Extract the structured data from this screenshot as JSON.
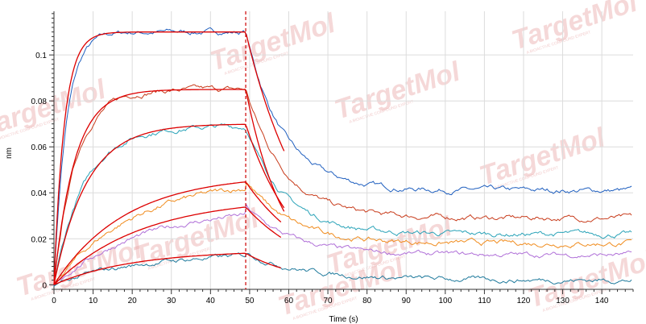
{
  "chart_data": {
    "type": "line",
    "title": "",
    "xlabel": "Time (s)",
    "ylabel": "nm",
    "xlim": [
      0,
      148
    ],
    "ylim": [
      -0.002,
      0.119
    ],
    "xticks": [
      0,
      10,
      20,
      30,
      40,
      50,
      60,
      70,
      80,
      90,
      100,
      110,
      120,
      130,
      140
    ],
    "yticks": [
      0,
      0.02,
      0.04,
      0.06,
      0.08,
      0.1
    ],
    "ytick_labels": [
      "0",
      "0.02",
      "0.04",
      "0.06",
      "0.08",
      "0.1"
    ],
    "grid": true,
    "legend": "none",
    "association_end": 49,
    "dissociation_marker_color": "#cc0000",
    "series": [
      {
        "color": "#1f5fbf",
        "rmax": 0.11,
        "kobs": 0.32,
        "kd": 0.105,
        "rinf": 0.041,
        "noise": 0.0012,
        "x": [
          0,
          5,
          10,
          20,
          30,
          40,
          48,
          49,
          55,
          60,
          70,
          80,
          90,
          100,
          120,
          140,
          148
        ],
        "y": [
          0.001,
          0.09,
          0.104,
          0.108,
          0.111,
          0.113,
          0.116,
          0.116,
          0.082,
          0.066,
          0.056,
          0.049,
          0.046,
          0.044,
          0.042,
          0.041,
          0.043
        ]
      },
      {
        "color": "#c83c1c",
        "rmax": 0.085,
        "kobs": 0.18,
        "kd": 0.1,
        "rinf": 0.029,
        "noise": 0.0012,
        "x": [
          0,
          5,
          10,
          20,
          30,
          40,
          48,
          49,
          55,
          60,
          70,
          80,
          90,
          100,
          120,
          140,
          148
        ],
        "y": [
          0.001,
          0.06,
          0.076,
          0.083,
          0.085,
          0.086,
          0.088,
          0.088,
          0.062,
          0.052,
          0.044,
          0.038,
          0.036,
          0.034,
          0.031,
          0.029,
          0.029
        ]
      },
      {
        "color": "#2aa3b8",
        "rmax": 0.069,
        "kobs": 0.13,
        "kd": 0.1,
        "rinf": 0.022,
        "noise": 0.0012,
        "x": [
          0,
          5,
          10,
          20,
          30,
          40,
          48,
          49,
          55,
          60,
          70,
          80,
          90,
          100,
          120,
          140,
          148
        ],
        "y": [
          0.001,
          0.042,
          0.055,
          0.064,
          0.066,
          0.068,
          0.069,
          0.069,
          0.048,
          0.04,
          0.034,
          0.03,
          0.028,
          0.026,
          0.024,
          0.022,
          0.023
        ]
      },
      {
        "color": "#f08c1e",
        "rmax": 0.046,
        "kobs": 0.05,
        "kd": 0.09,
        "rinf": 0.018,
        "noise": 0.0012,
        "x": [
          0,
          5,
          10,
          20,
          30,
          40,
          48,
          49,
          55,
          60,
          70,
          80,
          90,
          100,
          120,
          140,
          148
        ],
        "y": [
          0.001,
          0.014,
          0.024,
          0.037,
          0.042,
          0.044,
          0.046,
          0.046,
          0.036,
          0.03,
          0.027,
          0.024,
          0.022,
          0.02,
          0.019,
          0.017,
          0.019
        ]
      },
      {
        "color": "#b070d8",
        "rmax": 0.034,
        "kobs": 0.045,
        "kd": 0.085,
        "rinf": 0.013,
        "noise": 0.0011,
        "x": [
          0,
          5,
          10,
          20,
          30,
          40,
          48,
          49,
          55,
          60,
          70,
          80,
          90,
          100,
          120,
          140,
          148
        ],
        "y": [
          0.001,
          0.009,
          0.016,
          0.026,
          0.03,
          0.032,
          0.034,
          0.034,
          0.028,
          0.024,
          0.021,
          0.019,
          0.018,
          0.016,
          0.015,
          0.013,
          0.013
        ]
      },
      {
        "color": "#1f7a9c",
        "rmax": 0.014,
        "kobs": 0.045,
        "kd": 0.065,
        "rinf": 0.002,
        "noise": 0.0011,
        "x": [
          0,
          5,
          10,
          20,
          30,
          40,
          48,
          49,
          55,
          60,
          70,
          80,
          90,
          100,
          120,
          140,
          148
        ],
        "y": [
          0.001,
          0.004,
          0.006,
          0.01,
          0.012,
          0.013,
          0.014,
          0.014,
          0.012,
          0.01,
          0.008,
          0.007,
          0.006,
          0.004,
          0.003,
          0.001,
          0.002
        ]
      }
    ],
    "fit_color": "#dd0000",
    "fit_series": [
      {
        "ra": 0.11,
        "ka": 0.38,
        "ia": 0.0,
        "kd": 0.065,
        "rbase": 0.0,
        "dissoc_end": 59
      },
      {
        "ra": 0.085,
        "ka": 0.19,
        "ia": 0.0,
        "kd": 0.1,
        "rbase": 0.0,
        "dissoc_end": 59
      },
      {
        "ra": 0.07,
        "ka": 0.12,
        "ia": 0.0,
        "kd": 0.075,
        "rbase": 0.0,
        "dissoc_end": 59
      },
      {
        "ra": 0.048,
        "ka": 0.055,
        "ia": 0.0,
        "kd": 0.055,
        "rbase": 0.0,
        "dissoc_end": 58
      },
      {
        "ra": 0.038,
        "ka": 0.045,
        "ia": 0.0,
        "kd": 0.055,
        "rbase": 0.0,
        "dissoc_end": 58
      },
      {
        "ra": 0.015,
        "ka": 0.05,
        "ia": 0.0,
        "kd": 0.07,
        "rbase": 0.0,
        "dissoc_end": 58
      }
    ]
  },
  "watermark": {
    "text": "TargetMol",
    "subtext": "A BIOACTIVE COMPOUND EXPERT",
    "color": "#e9a9a9"
  }
}
